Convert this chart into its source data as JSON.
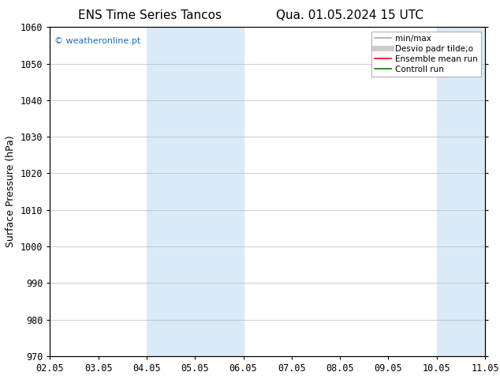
{
  "title_left": "ENS Time Series Tancos",
  "title_right": "Qua. 01.05.2024 15 UTC",
  "ylabel": "Surface Pressure (hPa)",
  "ylim": [
    970,
    1060
  ],
  "yticks": [
    970,
    980,
    990,
    1000,
    1010,
    1020,
    1030,
    1040,
    1050,
    1060
  ],
  "xtick_labels": [
    "02.05",
    "03.05",
    "04.05",
    "05.05",
    "06.05",
    "07.05",
    "08.05",
    "09.05",
    "10.05",
    "11.05"
  ],
  "shaded_bands": [
    {
      "xstart": 2,
      "xend": 4
    },
    {
      "xstart": 8,
      "xend": 9
    }
  ],
  "shaded_color": "#daeaf7",
  "background_color": "#ffffff",
  "grid_color": "#aaaaaa",
  "watermark_text": "© weatheronline.pt",
  "watermark_color": "#1a6eb5",
  "legend_items": [
    {
      "label": "min/max",
      "color": "#aaaaaa",
      "lw": 1.2,
      "ls": "-"
    },
    {
      "label": "Desvio padr tilde;o",
      "color": "#cccccc",
      "lw": 5,
      "ls": "-"
    },
    {
      "label": "Ensemble mean run",
      "color": "#ff0000",
      "lw": 1.2,
      "ls": "-"
    },
    {
      "label": "Controll run",
      "color": "#008000",
      "lw": 1.2,
      "ls": "-"
    }
  ],
  "title_fontsize": 11,
  "tick_fontsize": 8.5,
  "ylabel_fontsize": 9,
  "watermark_fontsize": 8
}
